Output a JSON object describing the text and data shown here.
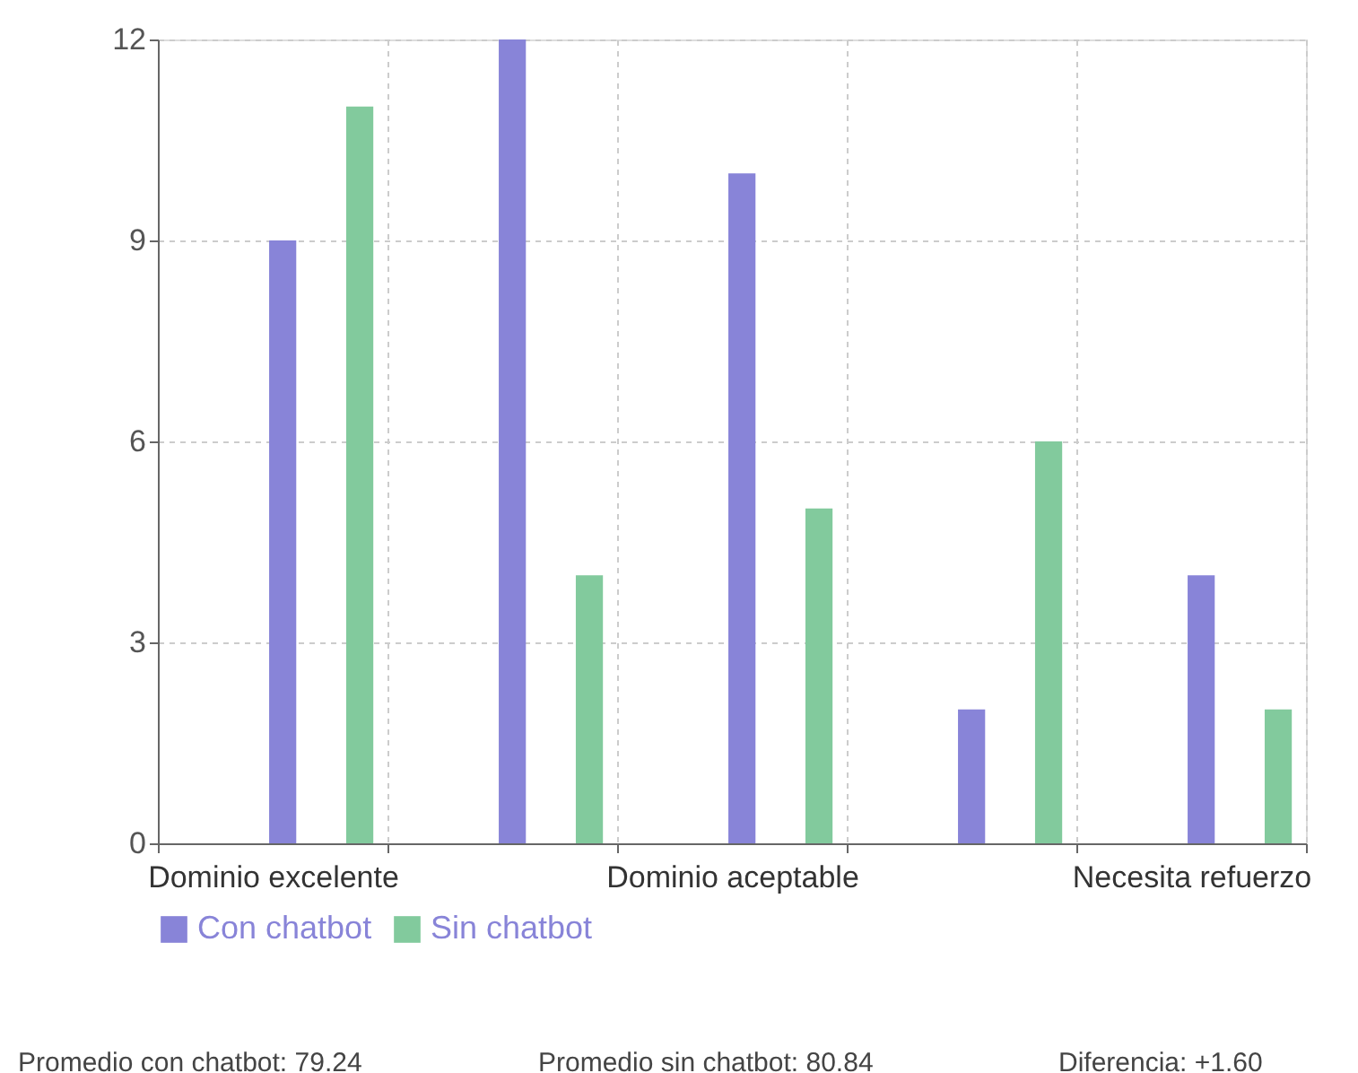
{
  "chart_data": {
    "type": "bar",
    "categories": [
      "Dominio excelente",
      null,
      "Dominio aceptable",
      null,
      "Necesita refuerzo"
    ],
    "series": [
      {
        "name": "Con chatbot",
        "color": "#8884d8",
        "values": [
          9,
          12,
          10,
          2,
          4
        ]
      },
      {
        "name": "Sin chatbot",
        "color": "#82ca9d",
        "values": [
          11,
          4,
          5,
          6,
          2
        ]
      }
    ],
    "ylim": [
      0,
      12
    ],
    "yticks": [
      0,
      3,
      6,
      9,
      12
    ],
    "grid": true,
    "legend": "bottom",
    "annotations": [
      "Promedio con chatbot: 79.24",
      "Promedio sin chatbot: 80.84",
      "Diferencia: +1.60"
    ]
  }
}
